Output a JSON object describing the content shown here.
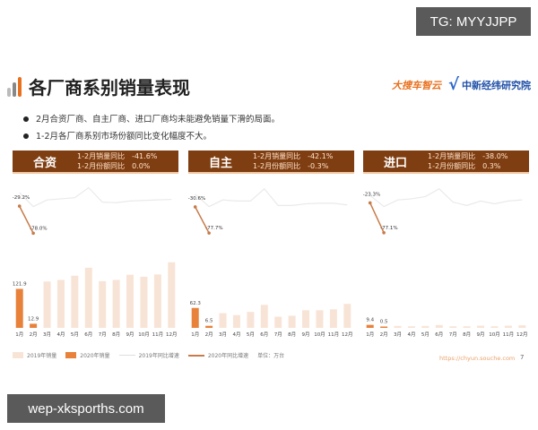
{
  "watermarks": {
    "top": "TG: MYYJJPP",
    "bottom": "wep-xksporths.com"
  },
  "title": "各厂商系别销量表现",
  "logos": {
    "left": "大搜车智云",
    "right": "中新经纬研究院"
  },
  "bullets": [
    "2月合资厂商、自主厂商、进口厂商均未能避免销量下滑的局面。",
    "1-2月各厂商系别市场份额同比变化幅度不大。"
  ],
  "colors": {
    "header": "#7f3e12",
    "bar2019": "#f8e4d6",
    "bar2020": "#e8813a",
    "line2019": "#eeeeee",
    "line2020": "#c87b4a"
  },
  "chart_data": [
    {
      "type": "bar",
      "title": "合资",
      "stats": {
        "sales_label": "1-2月销量同比",
        "sales": "-41.6%",
        "share_label": "1-2月份额同比",
        "share": "0.0%"
      },
      "categories": [
        "1月",
        "2月",
        "3月",
        "4月",
        "5月",
        "6月",
        "7月",
        "8月",
        "9月",
        "10月",
        "11月",
        "12月"
      ],
      "series": [
        {
          "name": "2019年销量",
          "values": [
            null,
            null,
            145,
            150,
            163,
            188,
            146,
            150,
            166,
            160,
            167,
            205
          ]
        },
        {
          "name": "2020年销量",
          "values": [
            121.9,
            12.9,
            null,
            null,
            null,
            null,
            null,
            null,
            null,
            null,
            null,
            null
          ]
        },
        {
          "name": "2019年同比增速",
          "values": [
            -5,
            -30,
            -18,
            -16,
            -14,
            4,
            -22,
            -23,
            -20,
            -19,
            -18,
            -17
          ]
        },
        {
          "name": "2020年同比增速",
          "values": [
            -29.2,
            -78.0,
            null,
            null,
            null,
            null,
            null,
            null,
            null,
            null,
            null,
            null
          ]
        }
      ],
      "labels": {
        "bar1": "121.9",
        "bar2": "12.9",
        "line1": "-29.2%",
        "line2": "-78.0%"
      }
    },
    {
      "type": "bar",
      "title": "自主",
      "stats": {
        "sales_label": "1-2月销量同比",
        "sales": "-42.1%",
        "share_label": "1-2月份额同比",
        "share": "-0.3%"
      },
      "categories": [
        "1月",
        "2月",
        "3月",
        "4月",
        "5月",
        "6月",
        "7月",
        "8月",
        "9月",
        "10月",
        "11月",
        "12月"
      ],
      "series": [
        {
          "name": "2019年销量",
          "values": [
            null,
            null,
            46,
            40,
            50,
            72,
            35,
            38,
            55,
            55,
            58,
            75
          ]
        },
        {
          "name": "2020年销量",
          "values": [
            62.3,
            6.5,
            null,
            null,
            null,
            null,
            null,
            null,
            null,
            null,
            null,
            null
          ]
        },
        {
          "name": "2019年同比增速",
          "values": [
            -8,
            -30,
            -18,
            -20,
            -20,
            2,
            -28,
            -28,
            -25,
            -24,
            -24,
            -27
          ]
        },
        {
          "name": "2020年同比增速",
          "values": [
            -30.6,
            -77.7,
            null,
            null,
            null,
            null,
            null,
            null,
            null,
            null,
            null,
            null
          ]
        }
      ],
      "labels": {
        "bar1": "62.3",
        "bar2": "6.5",
        "line1": "-30.6%",
        "line2": "-77.7%"
      }
    },
    {
      "type": "bar",
      "title": "进口",
      "stats": {
        "sales_label": "1-2月销量同比",
        "sales": "-38.0%",
        "share_label": "1-2月份额同比",
        "share": "0.3%"
      },
      "categories": [
        "1月",
        "2月",
        "3月",
        "4月",
        "5月",
        "6月",
        "7月",
        "8月",
        "9月",
        "10月",
        "11月",
        "12月"
      ],
      "series": [
        {
          "name": "2019年销量",
          "values": [
            null,
            null,
            6,
            5,
            6,
            9,
            5,
            5,
            7,
            5,
            7,
            8
          ]
        },
        {
          "name": "2020年销量",
          "values": [
            9.4,
            0.5,
            null,
            null,
            null,
            null,
            null,
            null,
            null,
            null,
            null,
            null
          ]
        },
        {
          "name": "2019年同比增速",
          "values": [
            -10,
            -30,
            -18,
            -16,
            -12,
            2,
            -22,
            -28,
            -20,
            -25,
            -20,
            -18
          ]
        },
        {
          "name": "2020年同比增速",
          "values": [
            -23.3,
            -77.1,
            null,
            null,
            null,
            null,
            null,
            null,
            null,
            null,
            null,
            null
          ]
        }
      ],
      "labels": {
        "bar1": "9.4",
        "bar2": "0.5",
        "line1": "-23.3%",
        "line2": "-77.1%"
      }
    }
  ],
  "legend": [
    "2019年销量",
    "2020年销量",
    "2019年同比增速",
    "2020年同比增速",
    "单位：万台"
  ],
  "footer": {
    "url": "https://chyun.souche.com",
    "page": "7"
  }
}
